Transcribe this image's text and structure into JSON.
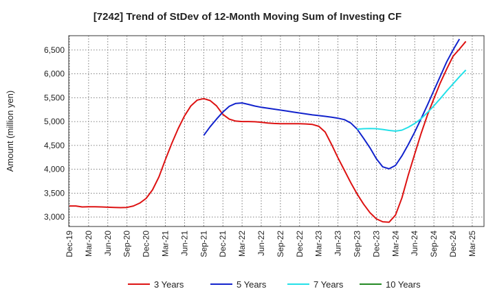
{
  "chart_data": {
    "type": "line",
    "title": "[7242]  Trend of StDev of 12-Month Moving Sum of Investing CF",
    "ylabel": "Amount (million yen)",
    "xlabel": "",
    "ylim": [
      2800,
      6800
    ],
    "yticks": [
      3000,
      3500,
      4000,
      4500,
      5000,
      5500,
      6000,
      6500
    ],
    "ytick_labels": [
      "3,000",
      "3,500",
      "4,000",
      "4,500",
      "5,000",
      "5,500",
      "6,000",
      "6,500"
    ],
    "xticks": [
      "Dec-19",
      "Mar-20",
      "Jun-20",
      "Sep-20",
      "Dec-20",
      "Mar-21",
      "Jun-21",
      "Sep-21",
      "Dec-21",
      "Mar-22",
      "Jun-22",
      "Sep-22",
      "Dec-22",
      "Mar-23",
      "Jun-23",
      "Sep-23",
      "Dec-23",
      "Mar-24",
      "Jun-24",
      "Sep-24",
      "Dec-24",
      "Mar-25"
    ],
    "grid": true,
    "legend_position": "bottom",
    "series": [
      {
        "name": "3 Years",
        "color": "#dd1111",
        "start_month": 0,
        "values": [
          3230,
          3230,
          3210,
          3215,
          3215,
          3210,
          3205,
          3200,
          3195,
          3200,
          3230,
          3290,
          3390,
          3570,
          3840,
          4200,
          4540,
          4850,
          5120,
          5330,
          5450,
          5480,
          5440,
          5330,
          5150,
          5050,
          5010,
          5000,
          5000,
          4995,
          4985,
          4970,
          4960,
          4955,
          4955,
          4955,
          4955,
          4950,
          4940,
          4900,
          4780,
          4520,
          4240,
          3980,
          3720,
          3480,
          3270,
          3090,
          2960,
          2900,
          2890,
          3040,
          3400,
          3880,
          4320,
          4750,
          5140,
          5480,
          5810,
          6100,
          6370,
          6520,
          6680
        ]
      },
      {
        "name": "5 Years",
        "color": "#1122cc",
        "start_month": 21,
        "values": [
          4710,
          4890,
          5050,
          5200,
          5320,
          5380,
          5390,
          5360,
          5325,
          5300,
          5280,
          5260,
          5240,
          5220,
          5200,
          5180,
          5160,
          5140,
          5125,
          5110,
          5090,
          5070,
          5040,
          4970,
          4840,
          4650,
          4450,
          4220,
          4050,
          4010,
          4080,
          4280,
          4520,
          4780,
          5060,
          5350,
          5650,
          5950,
          6250,
          6500,
          6730
        ]
      },
      {
        "name": "7 Years",
        "color": "#22e0e8",
        "start_month": 45,
        "values": [
          4840,
          4850,
          4855,
          4850,
          4835,
          4815,
          4800,
          4820,
          4880,
          4960,
          5060,
          5190,
          5330,
          5480,
          5640,
          5790,
          5940,
          6080
        ]
      },
      {
        "name": "10 Years",
        "color": "#228822",
        "start_month": 0,
        "values": []
      }
    ]
  }
}
